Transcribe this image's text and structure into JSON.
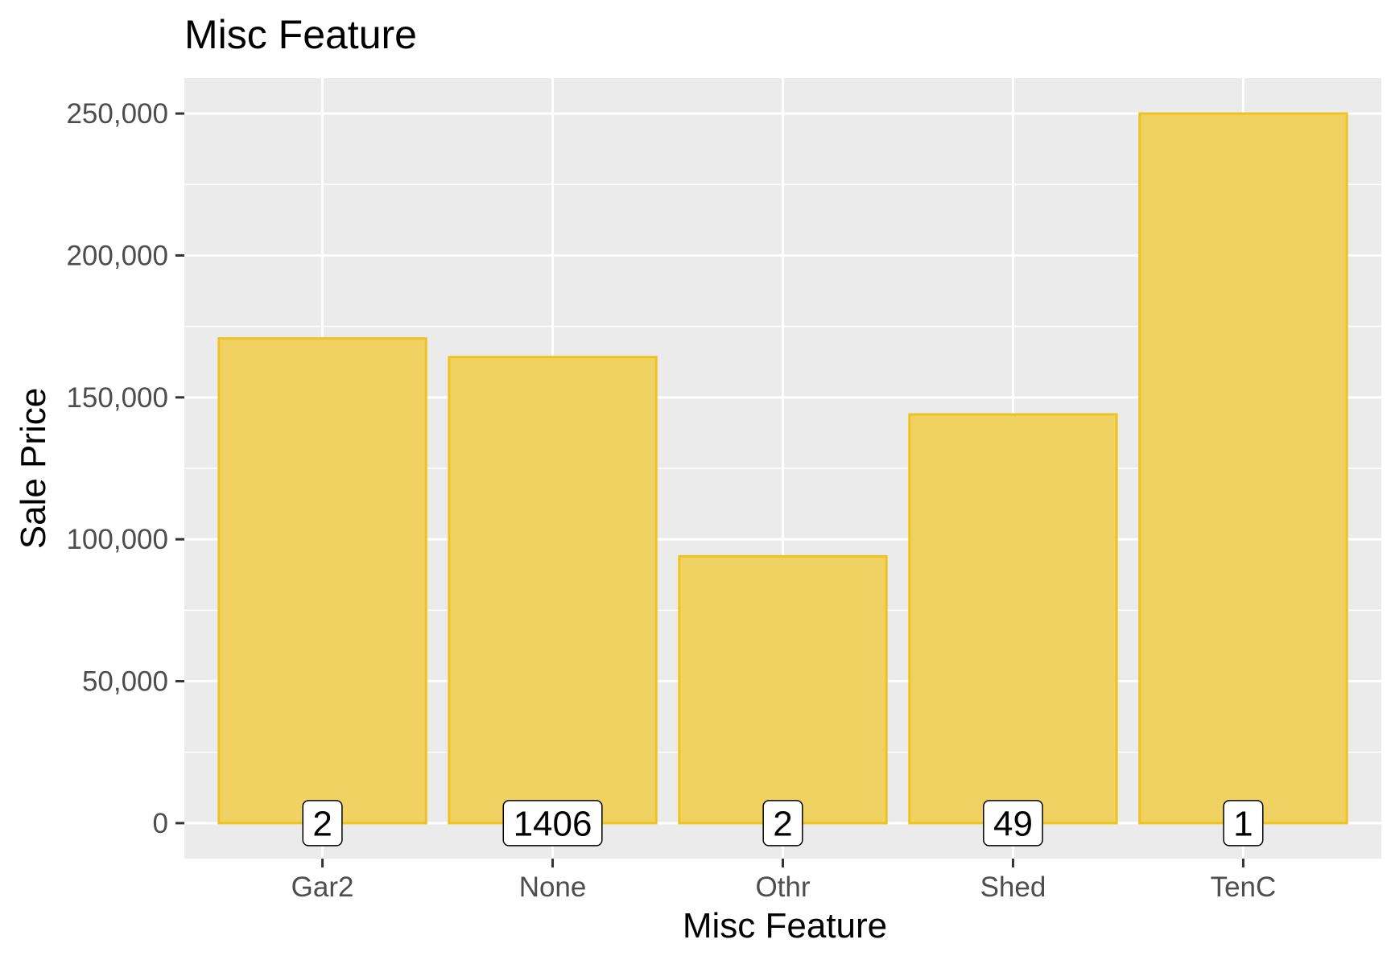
{
  "chart_data": {
    "type": "bar",
    "title": "Misc Feature",
    "xlabel": "Misc Feature",
    "ylabel": "Sale Price",
    "categories": [
      "Gar2",
      "None",
      "Othr",
      "Shed",
      "TenC"
    ],
    "values": [
      170750,
      164200,
      94000,
      144000,
      250000
    ],
    "counts": [
      "2",
      "1406",
      "2",
      "49",
      "1"
    ],
    "ylim": [
      -12500,
      262500
    ],
    "yticks": [
      0,
      50000,
      100000,
      150000,
      200000,
      250000
    ],
    "ytick_labels": [
      "0",
      "50,000",
      "100,000",
      "150,000",
      "200,000",
      "250,000"
    ],
    "grid": true,
    "legend": "none",
    "colors": {
      "bar_fill": "#F0D262",
      "bar_stroke": "#EFC31F",
      "panel_bg": "#EBEBEB",
      "grid": "#FFFFFF",
      "label_box_bg": "#FFFFFF",
      "label_box_border": "#000000",
      "tick_text": "#4D4D4D",
      "axis_tick": "#333333",
      "title_text": "#000000"
    }
  }
}
